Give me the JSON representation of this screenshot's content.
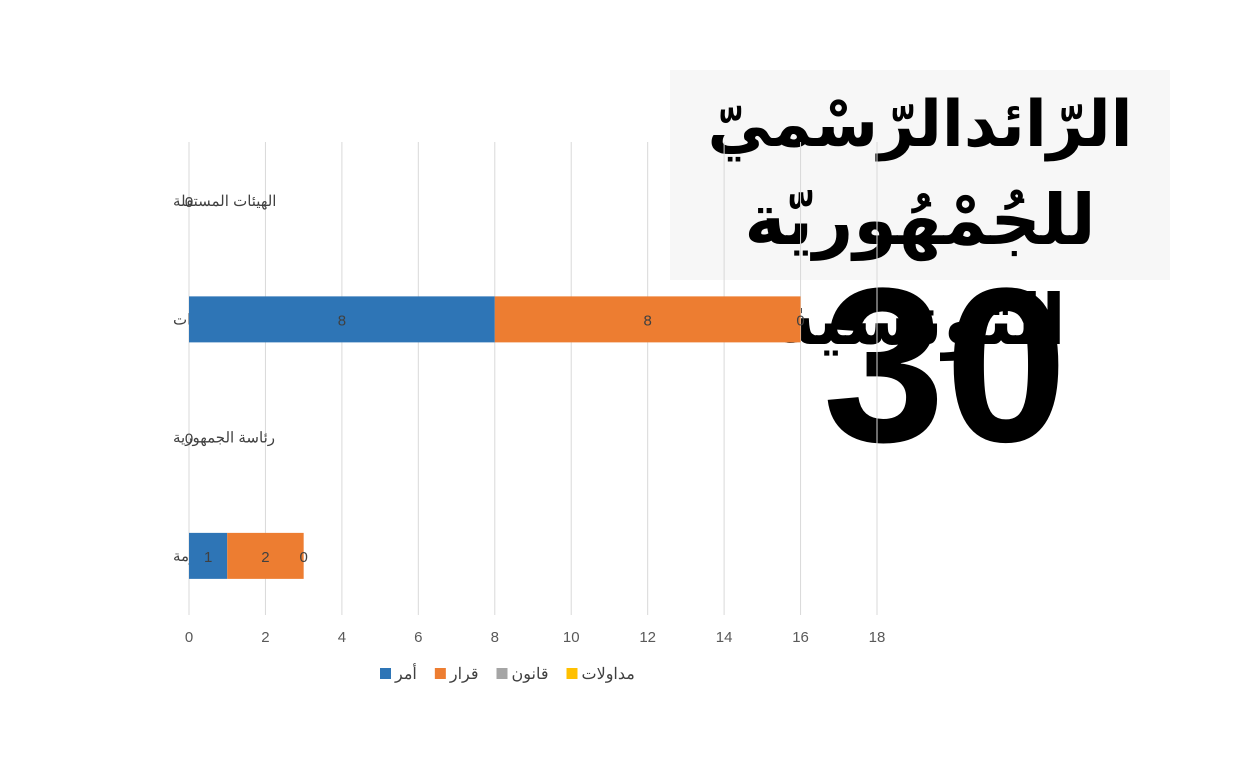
{
  "masthead": {
    "line1": "الرّائدالرّسْميّ",
    "line2": "للجُمْهُوريّة التونسية"
  },
  "issue_number": "30",
  "chart_data": {
    "type": "bar",
    "orientation": "horizontal",
    "stacked": true,
    "categories": [
      "رئاسة الحكومة",
      "رئاسة الجمهورية",
      "الوزارات",
      "الهيئات المستقلة"
    ],
    "series": [
      {
        "name": "أمر",
        "color": "#2e75b6",
        "values": [
          1,
          0,
          8,
          0
        ]
      },
      {
        "name": "قرار",
        "color": "#ed7d31",
        "values": [
          2,
          0,
          8,
          0
        ]
      },
      {
        "name": "قانون",
        "color": "#a5a5a5",
        "values": [
          0,
          0,
          0,
          0
        ]
      },
      {
        "name": "مداولات",
        "color": "#ffc000",
        "values": [
          0,
          0,
          0,
          0
        ]
      }
    ],
    "category_labels": [
      "رئاسة الحكومة",
      "رئاسة الجمهورية",
      "الوزارات",
      "الهيئات المستقلة"
    ],
    "data_labels": [
      [
        "1",
        "2",
        "0"
      ],
      [
        "0"
      ],
      [
        "8",
        "8",
        "0"
      ],
      [
        "0"
      ]
    ],
    "xlim": [
      0,
      18
    ],
    "x_ticks": [
      0,
      2,
      4,
      6,
      8,
      10,
      12,
      14,
      16,
      18
    ],
    "x_tick_labels": [
      "0",
      "2",
      "4",
      "6",
      "8",
      "10",
      "12",
      "14",
      "16",
      "18"
    ],
    "grid": true,
    "legend_position": "bottom",
    "title": "",
    "xlabel": "",
    "ylabel": ""
  }
}
